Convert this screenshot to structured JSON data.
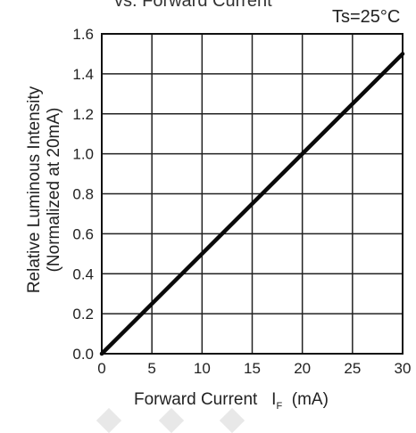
{
  "chart_data": {
    "type": "line",
    "title": "vs. Forward Current",
    "annotation": "Ts=25°C",
    "xlabel": "Forward Current",
    "xlabel_symbol": "I",
    "xlabel_subscript": "F",
    "xlabel_unit": "(mA)",
    "ylabel_line1": "Relative Luminous Intensity",
    "ylabel_line2": "(Normalized at 20mA)",
    "xlim": [
      0,
      30
    ],
    "ylim": [
      0,
      1.6
    ],
    "xticks": [
      "0",
      "5",
      "10",
      "15",
      "20",
      "25",
      "30"
    ],
    "yticks": [
      "0.0",
      "0.2",
      "0.4",
      "0.6",
      "0.8",
      "1.0",
      "1.2",
      "1.4",
      "1.6"
    ],
    "grid": true,
    "series": [
      {
        "x": [
          0,
          5,
          10,
          15,
          20,
          25,
          30
        ],
        "y": [
          0,
          0.25,
          0.5,
          0.75,
          1.0,
          1.25,
          1.5
        ]
      }
    ]
  }
}
